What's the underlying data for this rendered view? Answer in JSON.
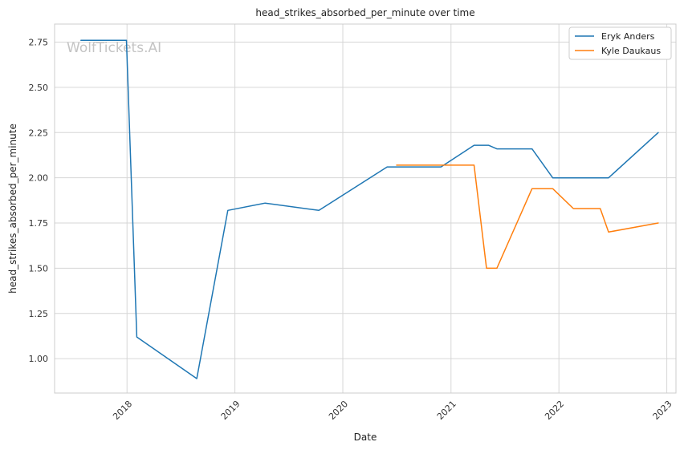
{
  "chart_data": {
    "type": "line",
    "title": "head_strikes_absorbed_per_minute over time",
    "xlabel": "Date",
    "ylabel": "head_strikes_absorbed_per_minute",
    "watermark": "WolfTickets.AI",
    "xlim": [
      "2017-05-01",
      "2023-02-01"
    ],
    "ylim": [
      0.81,
      2.85
    ],
    "grid": true,
    "legend_position": "top-right",
    "x_ticks": [
      "2018-01-01",
      "2019-01-01",
      "2020-01-01",
      "2021-01-01",
      "2022-01-01",
      "2023-01-01"
    ],
    "x_tick_labels": [
      "2018",
      "2019",
      "2020",
      "2021",
      "2022",
      "2023"
    ],
    "y_ticks": [
      1.0,
      1.25,
      1.5,
      1.75,
      2.0,
      2.25,
      2.5,
      2.75
    ],
    "y_tick_labels": [
      "1.00",
      "1.25",
      "1.50",
      "1.75",
      "2.00",
      "2.25",
      "2.50",
      "2.75"
    ],
    "series": [
      {
        "name": "Eryk Anders",
        "color": "#1f77b4",
        "x": [
          "2017-07-29",
          "2017-12-30",
          "2018-02-03",
          "2018-08-25",
          "2018-12-08",
          "2019-04-13",
          "2019-10-12",
          "2020-05-30",
          "2020-06-30",
          "2020-11-28",
          "2021-03-20",
          "2021-05-08",
          "2021-06-05",
          "2021-10-02",
          "2021-12-11",
          "2022-03-01",
          "2022-06-18",
          "2022-12-03"
        ],
        "y": [
          2.76,
          2.76,
          1.12,
          0.89,
          1.82,
          1.86,
          1.82,
          2.06,
          2.06,
          2.06,
          2.18,
          2.18,
          2.16,
          2.16,
          2.0,
          2.0,
          2.0,
          2.25
        ]
      },
      {
        "name": "Kyle Daukaus",
        "color": "#ff7f0e",
        "x": [
          "2020-07-01",
          "2020-12-01",
          "2021-03-20",
          "2021-05-01",
          "2021-06-05",
          "2021-10-02",
          "2021-12-11",
          "2022-02-19",
          "2022-05-21",
          "2022-06-18",
          "2022-12-03"
        ],
        "y": [
          2.07,
          2.07,
          2.07,
          1.5,
          1.5,
          1.94,
          1.94,
          1.83,
          1.83,
          1.7,
          1.75
        ]
      }
    ]
  }
}
